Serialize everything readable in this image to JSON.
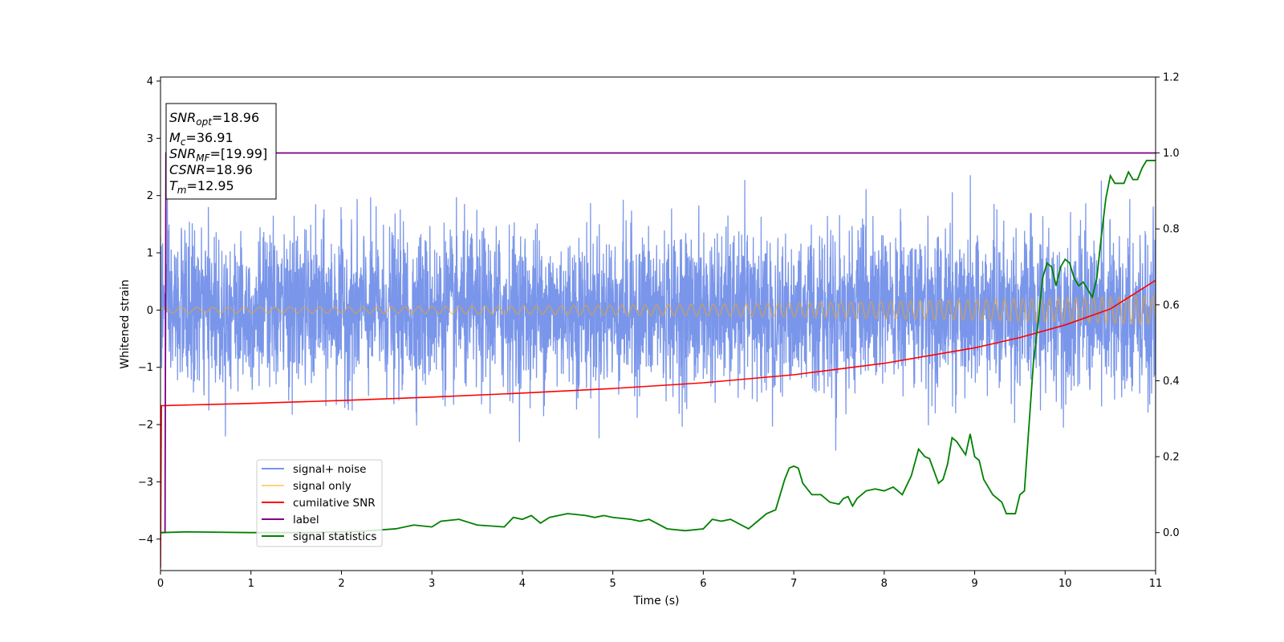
{
  "chart_data": {
    "type": "line",
    "xlabel": "Time (s)",
    "ylabel": "Whitened strain",
    "xlim": [
      0,
      11
    ],
    "ylim_left": [
      -4.55,
      4.07
    ],
    "ylim_right": [
      -0.1,
      1.2
    ],
    "x_ticks": [
      0,
      1,
      2,
      3,
      4,
      5,
      6,
      7,
      8,
      9,
      10,
      11
    ],
    "y_left_ticks": [
      -4,
      -3,
      -2,
      -1,
      0,
      1,
      2,
      3,
      4
    ],
    "y_right_ticks": [
      0.0,
      0.2,
      0.4,
      0.6,
      0.8,
      1.0,
      1.2
    ],
    "legend_position": "lower-left",
    "grid": false,
    "annotation": {
      "snr_opt": {
        "main": "SNR",
        "sub": "opt",
        "value": "=18.96"
      },
      "mc": {
        "main": "M",
        "sub": "c",
        "value": "=36.91"
      },
      "snr_mf": {
        "main": "SNR",
        "sub": "MF",
        "value": "=[19.99]"
      },
      "csnr": {
        "main": "CSNR",
        "sub": "",
        "value": "=18.96"
      },
      "tm": {
        "main": "T",
        "sub": "m",
        "value": "=12.95"
      }
    },
    "series": [
      {
        "name": "signal+ noise",
        "axis": "left",
        "color": "#4169e1",
        "alpha": 0.7,
        "description": "whitened noisy strain, roughly Gaussian noise between -2.8 and 2.4 around 0"
      },
      {
        "name": "signal only",
        "axis": "left",
        "color": "#ffa500",
        "alpha": 0.5,
        "description": "chirp oscillation, amplitude ~0.05 at t=0 rising to ~0.25 at t=11, frequency rising"
      },
      {
        "name": "cumilative SNR",
        "axis": "left",
        "color": "#ff0000",
        "x": [
          0,
          1,
          2,
          3,
          4,
          5,
          6,
          7,
          8,
          9,
          9.5,
          10,
          10.5,
          11
        ],
        "y": [
          -1.67,
          -1.63,
          -1.58,
          -1.52,
          -1.45,
          -1.37,
          -1.27,
          -1.13,
          -0.93,
          -0.66,
          -0.48,
          -0.26,
          0.02,
          0.52
        ]
      },
      {
        "name": "label",
        "axis": "right",
        "color": "#800080",
        "x": [
          0,
          0.05,
          0.06,
          11
        ],
        "y": [
          0.0,
          0.0,
          1.0,
          1.0
        ]
      },
      {
        "name": "signal statistics",
        "axis": "right",
        "color": "#008000",
        "x": [
          0,
          0.3,
          1.0,
          1.6,
          2.2,
          2.6,
          2.8,
          3.0,
          3.1,
          3.3,
          3.5,
          3.8,
          3.9,
          4.0,
          4.1,
          4.2,
          4.3,
          4.4,
          4.5,
          4.7,
          4.8,
          4.9,
          5.0,
          5.2,
          5.3,
          5.4,
          5.6,
          5.8,
          6.0,
          6.1,
          6.2,
          6.3,
          6.5,
          6.6,
          6.7,
          6.8,
          6.9,
          6.95,
          7.0,
          7.05,
          7.1,
          7.2,
          7.3,
          7.4,
          7.5,
          7.55,
          7.6,
          7.65,
          7.7,
          7.75,
          7.8,
          7.9,
          8.0,
          8.1,
          8.2,
          8.3,
          8.38,
          8.45,
          8.5,
          8.6,
          8.65,
          8.7,
          8.75,
          8.8,
          8.9,
          8.95,
          9.0,
          9.05,
          9.1,
          9.15,
          9.2,
          9.3,
          9.35,
          9.45,
          9.5,
          9.55,
          9.6,
          9.65,
          9.7,
          9.75,
          9.8,
          9.85,
          9.9,
          9.95,
          10.0,
          10.05,
          10.1,
          10.15,
          10.2,
          10.25,
          10.3,
          10.35,
          10.4,
          10.45,
          10.5,
          10.55,
          10.6,
          10.65,
          10.7,
          10.75,
          10.8,
          10.85,
          10.9,
          10.95,
          11.0
        ],
        "y": [
          0.0,
          0.002,
          0.0,
          0.0,
          0.003,
          0.01,
          0.02,
          0.015,
          0.03,
          0.035,
          0.02,
          0.015,
          0.04,
          0.035,
          0.045,
          0.025,
          0.04,
          0.045,
          0.05,
          0.045,
          0.04,
          0.045,
          0.04,
          0.035,
          0.03,
          0.035,
          0.01,
          0.005,
          0.01,
          0.035,
          0.03,
          0.035,
          0.01,
          0.03,
          0.05,
          0.06,
          0.14,
          0.17,
          0.175,
          0.17,
          0.13,
          0.1,
          0.1,
          0.08,
          0.075,
          0.09,
          0.095,
          0.07,
          0.09,
          0.1,
          0.11,
          0.115,
          0.11,
          0.12,
          0.1,
          0.15,
          0.22,
          0.2,
          0.195,
          0.13,
          0.14,
          0.18,
          0.25,
          0.24,
          0.205,
          0.26,
          0.2,
          0.19,
          0.14,
          0.12,
          0.1,
          0.08,
          0.05,
          0.05,
          0.1,
          0.11,
          0.28,
          0.45,
          0.55,
          0.67,
          0.71,
          0.7,
          0.65,
          0.7,
          0.72,
          0.71,
          0.67,
          0.65,
          0.66,
          0.64,
          0.62,
          0.67,
          0.78,
          0.88,
          0.94,
          0.92,
          0.92,
          0.92,
          0.95,
          0.93,
          0.93,
          0.96,
          0.98,
          0.98,
          0.98
        ]
      }
    ]
  }
}
